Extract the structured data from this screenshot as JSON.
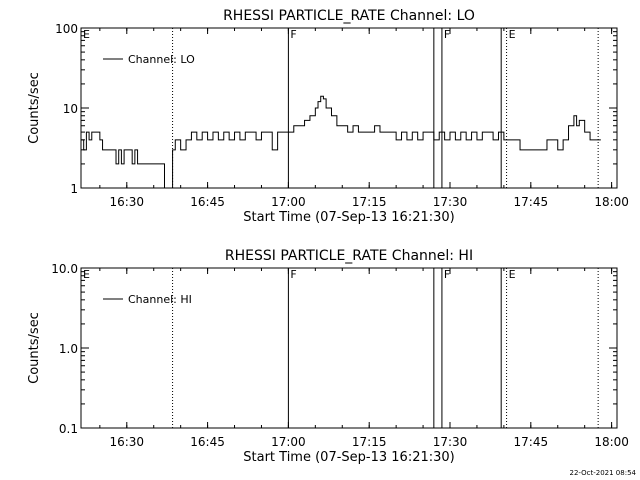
{
  "footer": {
    "timestamp": "22-Oct-2021 08:54"
  },
  "chart_data": [
    {
      "type": "line",
      "title": "RHESSI PARTICLE_RATE Channel: LO",
      "xlabel": "Start Time (07-Sep-13 16:21:30)",
      "ylabel": "Counts/sec",
      "yscale": "log",
      "ylim": [
        1,
        100
      ],
      "xlim": [
        "16:21:30",
        "18:01:00"
      ],
      "x_ticks": [
        "16:30",
        "16:45",
        "17:00",
        "17:15",
        "17:30",
        "17:45",
        "18:00"
      ],
      "y_ticks": [
        "1",
        "10",
        "100"
      ],
      "legend": {
        "label": "Channel: LO",
        "position": "top-left"
      },
      "event_markers": [
        {
          "time": "16:21:30",
          "label": "E",
          "style": "none"
        },
        {
          "time": "16:38:30",
          "label": "",
          "style": "dotted"
        },
        {
          "time": "17:00:00",
          "label": "F",
          "style": "solid"
        },
        {
          "time": "17:27:00",
          "label": "",
          "style": "solid"
        },
        {
          "time": "17:28:30",
          "label": "F",
          "style": "solid"
        },
        {
          "time": "17:39:30",
          "label": "",
          "style": "solid"
        },
        {
          "time": "17:40:30",
          "label": "E",
          "style": "dotted"
        },
        {
          "time": "17:57:30",
          "label": "",
          "style": "dotted"
        }
      ],
      "series": [
        {
          "name": "Channel: LO",
          "points": [
            [
              "16:21:30",
              4
            ],
            [
              "16:22:00",
              3
            ],
            [
              "16:22:30",
              5
            ],
            [
              "16:23:00",
              4
            ],
            [
              "16:23:30",
              5
            ],
            [
              "16:24:30",
              5
            ],
            [
              "16:25:00",
              4
            ],
            [
              "16:25:30",
              3
            ],
            [
              "16:27:30",
              3
            ],
            [
              "16:28:00",
              2
            ],
            [
              "16:28:30",
              3
            ],
            [
              "16:29:00",
              2
            ],
            [
              "16:29:30",
              3
            ],
            [
              "16:30:30",
              3
            ],
            [
              "16:31:00",
              2
            ],
            [
              "16:31:30",
              3
            ],
            [
              "16:32:00",
              2
            ],
            [
              "16:35:00",
              2
            ],
            [
              "16:36:00",
              2
            ],
            [
              "16:37:00",
              1
            ],
            [
              "16:38:00",
              1
            ],
            [
              "16:38:30",
              3
            ],
            [
              "16:39:00",
              4
            ],
            [
              "16:40:00",
              3
            ],
            [
              "16:41:00",
              4
            ],
            [
              "16:42:00",
              5
            ],
            [
              "16:43:00",
              4
            ],
            [
              "16:44:00",
              5
            ],
            [
              "16:45:00",
              4
            ],
            [
              "16:46:00",
              5
            ],
            [
              "16:47:00",
              4
            ],
            [
              "16:48:00",
              5
            ],
            [
              "16:49:00",
              4
            ],
            [
              "16:50:00",
              5
            ],
            [
              "16:51:00",
              4
            ],
            [
              "16:52:00",
              5
            ],
            [
              "16:53:00",
              5
            ],
            [
              "16:54:00",
              4
            ],
            [
              "16:55:00",
              5
            ],
            [
              "16:56:00",
              5
            ],
            [
              "16:57:00",
              3
            ],
            [
              "16:58:00",
              5
            ],
            [
              "16:59:00",
              5
            ],
            [
              "17:00:00",
              5
            ],
            [
              "17:01:00",
              6
            ],
            [
              "17:02:00",
              6
            ],
            [
              "17:03:00",
              7
            ],
            [
              "17:04:00",
              8
            ],
            [
              "17:05:00",
              10
            ],
            [
              "17:05:30",
              12
            ],
            [
              "17:06:00",
              14
            ],
            [
              "17:06:30",
              13
            ],
            [
              "17:07:00",
              10
            ],
            [
              "17:08:00",
              8
            ],
            [
              "17:09:00",
              6
            ],
            [
              "17:10:00",
              6
            ],
            [
              "17:11:00",
              5
            ],
            [
              "17:12:00",
              6
            ],
            [
              "17:13:00",
              5
            ],
            [
              "17:14:00",
              5
            ],
            [
              "17:15:00",
              5
            ],
            [
              "17:16:00",
              6
            ],
            [
              "17:17:00",
              5
            ],
            [
              "17:18:00",
              5
            ],
            [
              "17:19:00",
              5
            ],
            [
              "17:20:00",
              4
            ],
            [
              "17:21:00",
              5
            ],
            [
              "17:22:00",
              4
            ],
            [
              "17:23:00",
              5
            ],
            [
              "17:24:00",
              4
            ],
            [
              "17:25:00",
              5
            ],
            [
              "17:26:00",
              5
            ],
            [
              "17:27:00",
              4
            ],
            [
              "17:28:00",
              5
            ],
            [
              "17:29:00",
              4
            ],
            [
              "17:30:00",
              5
            ],
            [
              "17:31:00",
              4
            ],
            [
              "17:32:00",
              5
            ],
            [
              "17:33:00",
              4
            ],
            [
              "17:34:00",
              5
            ],
            [
              "17:35:00",
              4
            ],
            [
              "17:36:00",
              5
            ],
            [
              "17:37:00",
              5
            ],
            [
              "17:38:00",
              4
            ],
            [
              "17:39:00",
              5
            ],
            [
              "17:40:00",
              4
            ],
            [
              "17:42:00",
              4
            ],
            [
              "17:43:00",
              3
            ],
            [
              "17:47:00",
              3
            ],
            [
              "17:48:00",
              4
            ],
            [
              "17:50:00",
              3
            ],
            [
              "17:51:00",
              4
            ],
            [
              "17:52:00",
              6
            ],
            [
              "17:53:00",
              8
            ],
            [
              "17:53:30",
              6
            ],
            [
              "17:54:00",
              7
            ],
            [
              "17:55:00",
              5
            ],
            [
              "17:56:00",
              4
            ],
            [
              "17:58:00",
              4
            ]
          ]
        }
      ]
    },
    {
      "type": "line",
      "title": "RHESSI PARTICLE_RATE Channel: HI",
      "xlabel": "Start Time (07-Sep-13 16:21:30)",
      "ylabel": "Counts/sec",
      "yscale": "log",
      "ylim": [
        0.1,
        10.0
      ],
      "xlim": [
        "16:21:30",
        "18:01:00"
      ],
      "x_ticks": [
        "16:30",
        "16:45",
        "17:00",
        "17:15",
        "17:30",
        "17:45",
        "18:00"
      ],
      "y_ticks": [
        "0.1",
        "1.0",
        "10.0"
      ],
      "legend": {
        "label": "Channel: HI",
        "position": "top-left"
      },
      "event_markers": [
        {
          "time": "16:21:30",
          "label": "E",
          "style": "none"
        },
        {
          "time": "16:38:30",
          "label": "",
          "style": "dotted"
        },
        {
          "time": "17:00:00",
          "label": "F",
          "style": "solid"
        },
        {
          "time": "17:27:00",
          "label": "",
          "style": "solid"
        },
        {
          "time": "17:28:30",
          "label": "F",
          "style": "solid"
        },
        {
          "time": "17:39:30",
          "label": "",
          "style": "solid"
        },
        {
          "time": "17:40:30",
          "label": "E",
          "style": "dotted"
        },
        {
          "time": "17:57:30",
          "label": "",
          "style": "dotted"
        }
      ],
      "series": [
        {
          "name": "Channel: HI",
          "points": []
        }
      ]
    }
  ]
}
